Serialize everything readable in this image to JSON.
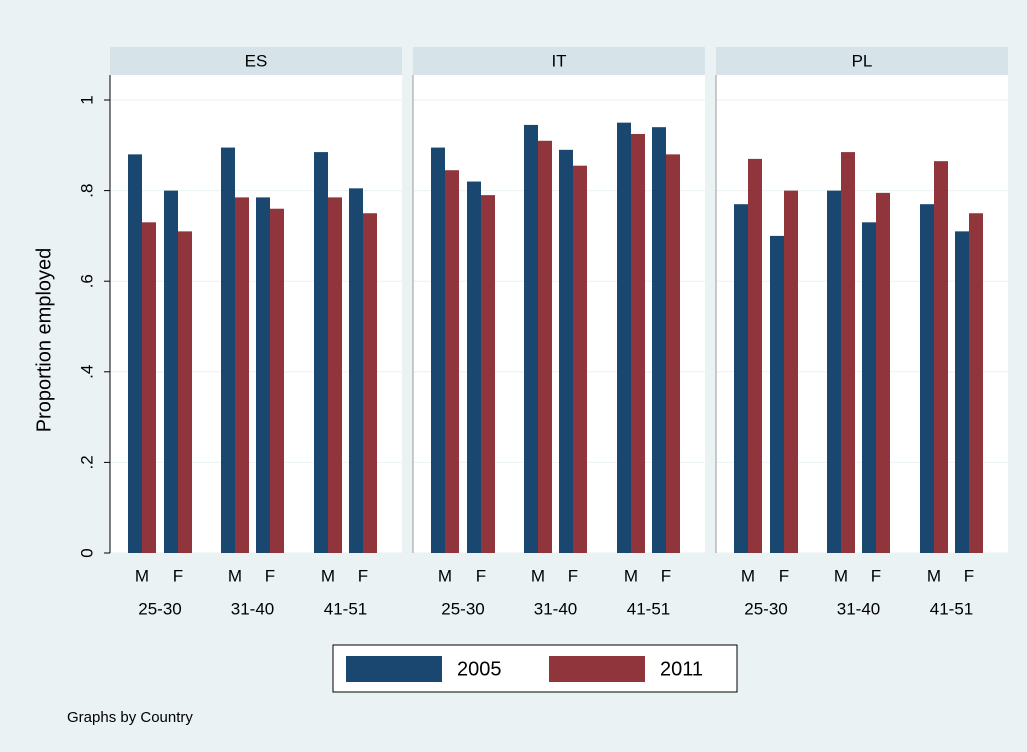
{
  "chart_data": {
    "type": "bar",
    "ylabel": "Proportion employed",
    "note": "Graphs by Country",
    "ylim": [
      0,
      1
    ],
    "yticks": [
      0,
      {
        "value": 0.2,
        "label": ".2"
      },
      {
        "value": 0.4,
        "label": ".4"
      },
      {
        "value": 0.6,
        "label": ".6"
      },
      {
        "value": 0.8,
        "label": ".8"
      },
      1
    ],
    "grid": true,
    "categories": [
      "M",
      "F",
      "M",
      "F",
      "M",
      "F"
    ],
    "groups": [
      "25-30",
      "31-40",
      "41-51"
    ],
    "series": [
      {
        "name": "2005",
        "color": "#1a476f"
      },
      {
        "name": "2011",
        "color": "#90353b"
      }
    ],
    "panels": [
      {
        "title": "ES",
        "values": [
          [
            0.88,
            0.8,
            0.895,
            0.785,
            0.885,
            0.805
          ],
          [
            0.73,
            0.71,
            0.785,
            0.76,
            0.785,
            0.75
          ]
        ]
      },
      {
        "title": "IT",
        "values": [
          [
            0.895,
            0.82,
            0.945,
            0.89,
            0.95,
            0.94
          ],
          [
            0.845,
            0.79,
            0.91,
            0.855,
            0.925,
            0.88
          ]
        ]
      },
      {
        "title": "PL",
        "values": [
          [
            0.77,
            0.7,
            0.8,
            0.73,
            0.77,
            0.71
          ],
          [
            0.87,
            0.8,
            0.885,
            0.795,
            0.865,
            0.75
          ]
        ]
      }
    ]
  }
}
